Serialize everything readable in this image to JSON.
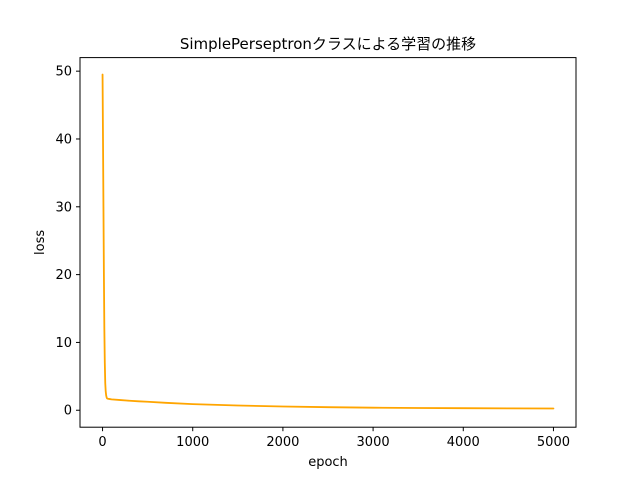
{
  "chart_data": {
    "type": "line",
    "title": "SimplePerseptronクラスによる学習の推移",
    "xlabel": "epoch",
    "ylabel": "loss",
    "xlim": [
      -250,
      5250
    ],
    "ylim": [
      -2.5,
      52
    ],
    "grid": false,
    "legend": "none",
    "x_ticks": [
      0,
      1000,
      2000,
      3000,
      4000,
      5000
    ],
    "x_tick_labels": [
      "0",
      "1000",
      "2000",
      "3000",
      "4000",
      "5000"
    ],
    "y_ticks": [
      0,
      10,
      20,
      30,
      40,
      50
    ],
    "y_tick_labels": [
      "0",
      "10",
      "20",
      "30",
      "40",
      "50"
    ],
    "series": [
      {
        "color": "#ffa500",
        "x": [
          0,
          5,
          10,
          15,
          20,
          25,
          30,
          35,
          40,
          45,
          50,
          60,
          80,
          100,
          200,
          300,
          400,
          500,
          700,
          1000,
          1500,
          2000,
          2500,
          3000,
          3500,
          4000,
          4500,
          5000
        ],
        "y": [
          49.5,
          40.0,
          30.0,
          20.0,
          12.0,
          7.0,
          4.0,
          2.8,
          2.2,
          1.9,
          1.75,
          1.7,
          1.65,
          1.6,
          1.5,
          1.4,
          1.32,
          1.25,
          1.1,
          0.9,
          0.7,
          0.55,
          0.45,
          0.38,
          0.33,
          0.3,
          0.28,
          0.26
        ]
      }
    ]
  }
}
